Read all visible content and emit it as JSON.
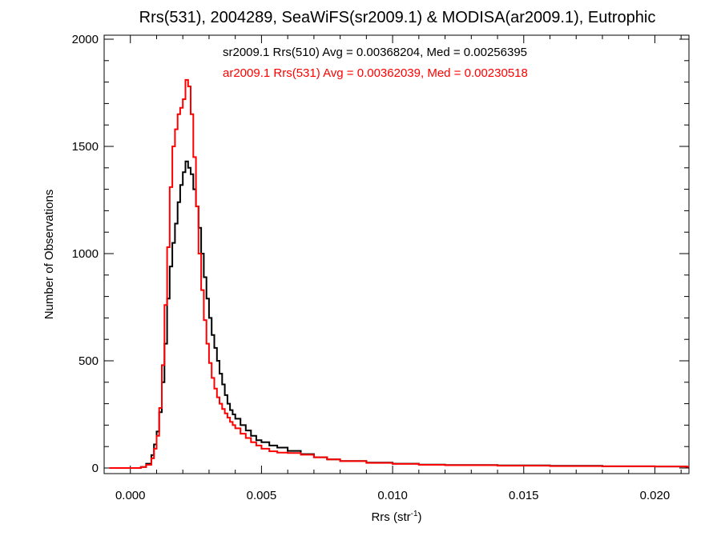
{
  "chart_data": {
    "type": "line",
    "title": "Rrs(531), 2004289, SeaWiFS(sr2009.1) & MODISA(ar2009.1), Eutrophic",
    "xlabel": {
      "base": "Rrs (str",
      "sup": "-1",
      "tail": ")"
    },
    "ylabel": "Number of Observations",
    "xlim": [
      -0.001,
      0.0213
    ],
    "ylim": [
      0,
      2000
    ],
    "xticks": [
      0.0,
      0.005,
      0.01,
      0.015,
      0.02
    ],
    "xtick_labels": [
      "0.000",
      "0.005",
      "0.010",
      "0.015",
      "0.020"
    ],
    "yticks": [
      0,
      500,
      1000,
      1500,
      2000
    ],
    "ytick_labels": [
      "0",
      "500",
      "1000",
      "1500",
      "2000"
    ],
    "grid": false,
    "legend_position": "top",
    "series": [
      {
        "name": "sr2009.1 Rrs(510) Avg = 0.00368204, Med = 0.00256395",
        "color": "#000000",
        "x": [
          -0.0008,
          0.0004,
          0.0006,
          0.0008,
          0.0009,
          0.001,
          0.0011,
          0.0012,
          0.0013,
          0.0014,
          0.0015,
          0.0016,
          0.0017,
          0.0018,
          0.0019,
          0.002,
          0.0021,
          0.0022,
          0.0023,
          0.0024,
          0.0025,
          0.0026,
          0.0027,
          0.0028,
          0.0029,
          0.003,
          0.0031,
          0.0032,
          0.0033,
          0.0034,
          0.0035,
          0.0036,
          0.0037,
          0.0038,
          0.0039,
          0.004,
          0.0042,
          0.0044,
          0.0046,
          0.0048,
          0.005,
          0.0053,
          0.0056,
          0.006,
          0.0065,
          0.007,
          0.0075,
          0.008,
          0.009,
          0.01,
          0.011,
          0.012,
          0.014,
          0.016,
          0.018,
          0.02,
          0.0212
        ],
        "y": [
          0,
          5,
          20,
          60,
          110,
          170,
          260,
          400,
          580,
          790,
          940,
          1050,
          1140,
          1240,
          1320,
          1380,
          1430,
          1400,
          1370,
          1300,
          1220,
          1120,
          1000,
          890,
          790,
          700,
          620,
          560,
          500,
          440,
          390,
          340,
          300,
          270,
          250,
          230,
          200,
          175,
          150,
          130,
          120,
          105,
          95,
          80,
          65,
          50,
          40,
          33,
          25,
          20,
          16,
          14,
          12,
          10,
          8,
          7,
          6
        ]
      },
      {
        "name": "ar2009.1 Rrs(531) Avg = 0.00362039, Med = 0.00230518",
        "color": "#ff0000",
        "x": [
          -0.0008,
          0.0004,
          0.0006,
          0.0008,
          0.0009,
          0.001,
          0.0011,
          0.0012,
          0.0013,
          0.0014,
          0.0015,
          0.0016,
          0.0017,
          0.0018,
          0.0019,
          0.002,
          0.0021,
          0.0022,
          0.0023,
          0.0024,
          0.0025,
          0.0026,
          0.0027,
          0.0028,
          0.0029,
          0.003,
          0.0031,
          0.0032,
          0.0033,
          0.0034,
          0.0035,
          0.0036,
          0.0037,
          0.0038,
          0.0039,
          0.004,
          0.0042,
          0.0044,
          0.0046,
          0.0048,
          0.005,
          0.0053,
          0.0056,
          0.006,
          0.0065,
          0.007,
          0.0075,
          0.008,
          0.009,
          0.01,
          0.011,
          0.012,
          0.014,
          0.016,
          0.018,
          0.02,
          0.0212
        ],
        "y": [
          0,
          5,
          15,
          45,
          90,
          150,
          280,
          480,
          760,
          1030,
          1310,
          1500,
          1580,
          1650,
          1680,
          1720,
          1810,
          1780,
          1650,
          1450,
          1220,
          1000,
          830,
          690,
          580,
          490,
          420,
          370,
          330,
          300,
          275,
          255,
          235,
          215,
          200,
          185,
          160,
          140,
          120,
          105,
          90,
          78,
          72,
          70,
          62,
          50,
          40,
          32,
          24,
          19,
          15,
          13,
          11,
          9,
          8,
          7,
          6
        ]
      }
    ]
  }
}
